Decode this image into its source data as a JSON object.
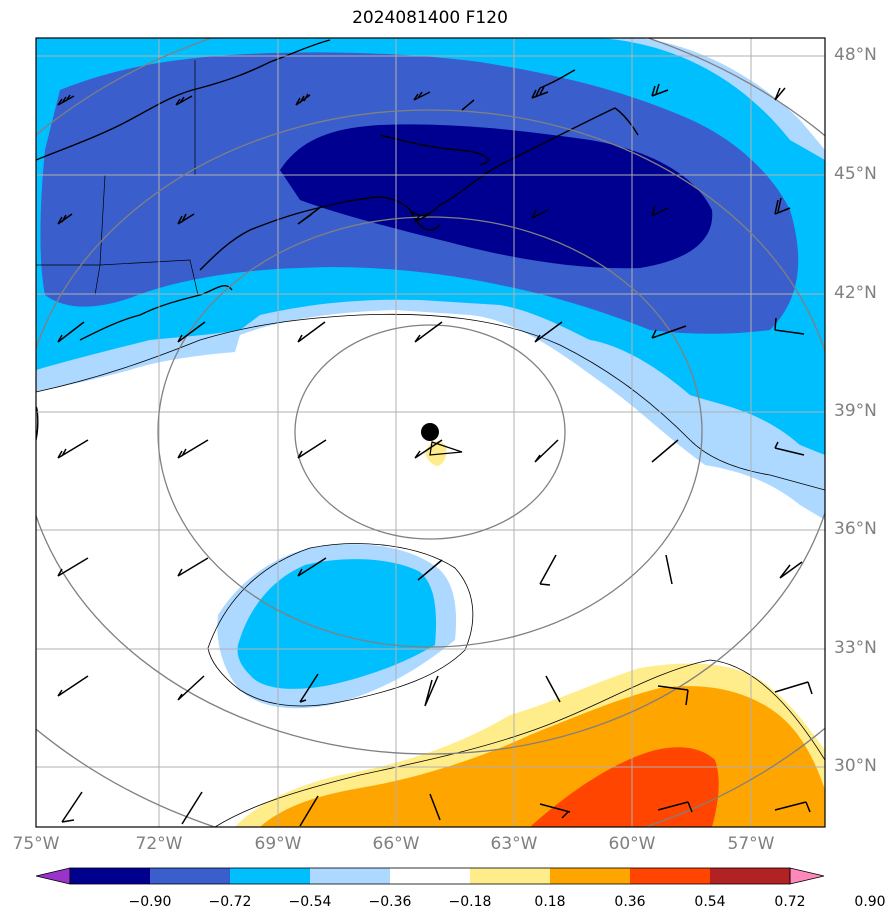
{
  "title": "2024081400 F120",
  "lat_labels": [
    "48°N",
    "45°N",
    "42°N",
    "39°N",
    "36°N",
    "33°N",
    "30°N"
  ],
  "lon_labels": [
    "75°W",
    "72°W",
    "69°W",
    "66°W",
    "63°W",
    "60°W",
    "57°W"
  ],
  "colorbar": {
    "levels": [
      "−0.90",
      "−0.72",
      "−0.54",
      "−0.36",
      "−0.18",
      "0.18",
      "0.36",
      "0.54",
      "0.72",
      "0.90"
    ],
    "colors": [
      "#9933cc",
      "#000090",
      "#3a5ecc",
      "#00bfff",
      "#add8ff",
      "#ffffff",
      "#ffec8b",
      "#ffa500",
      "#ff4500",
      "#b22222",
      "#ff88bb"
    ]
  },
  "storm_center": {
    "lat": 38.5,
    "lon": -65.0
  }
}
